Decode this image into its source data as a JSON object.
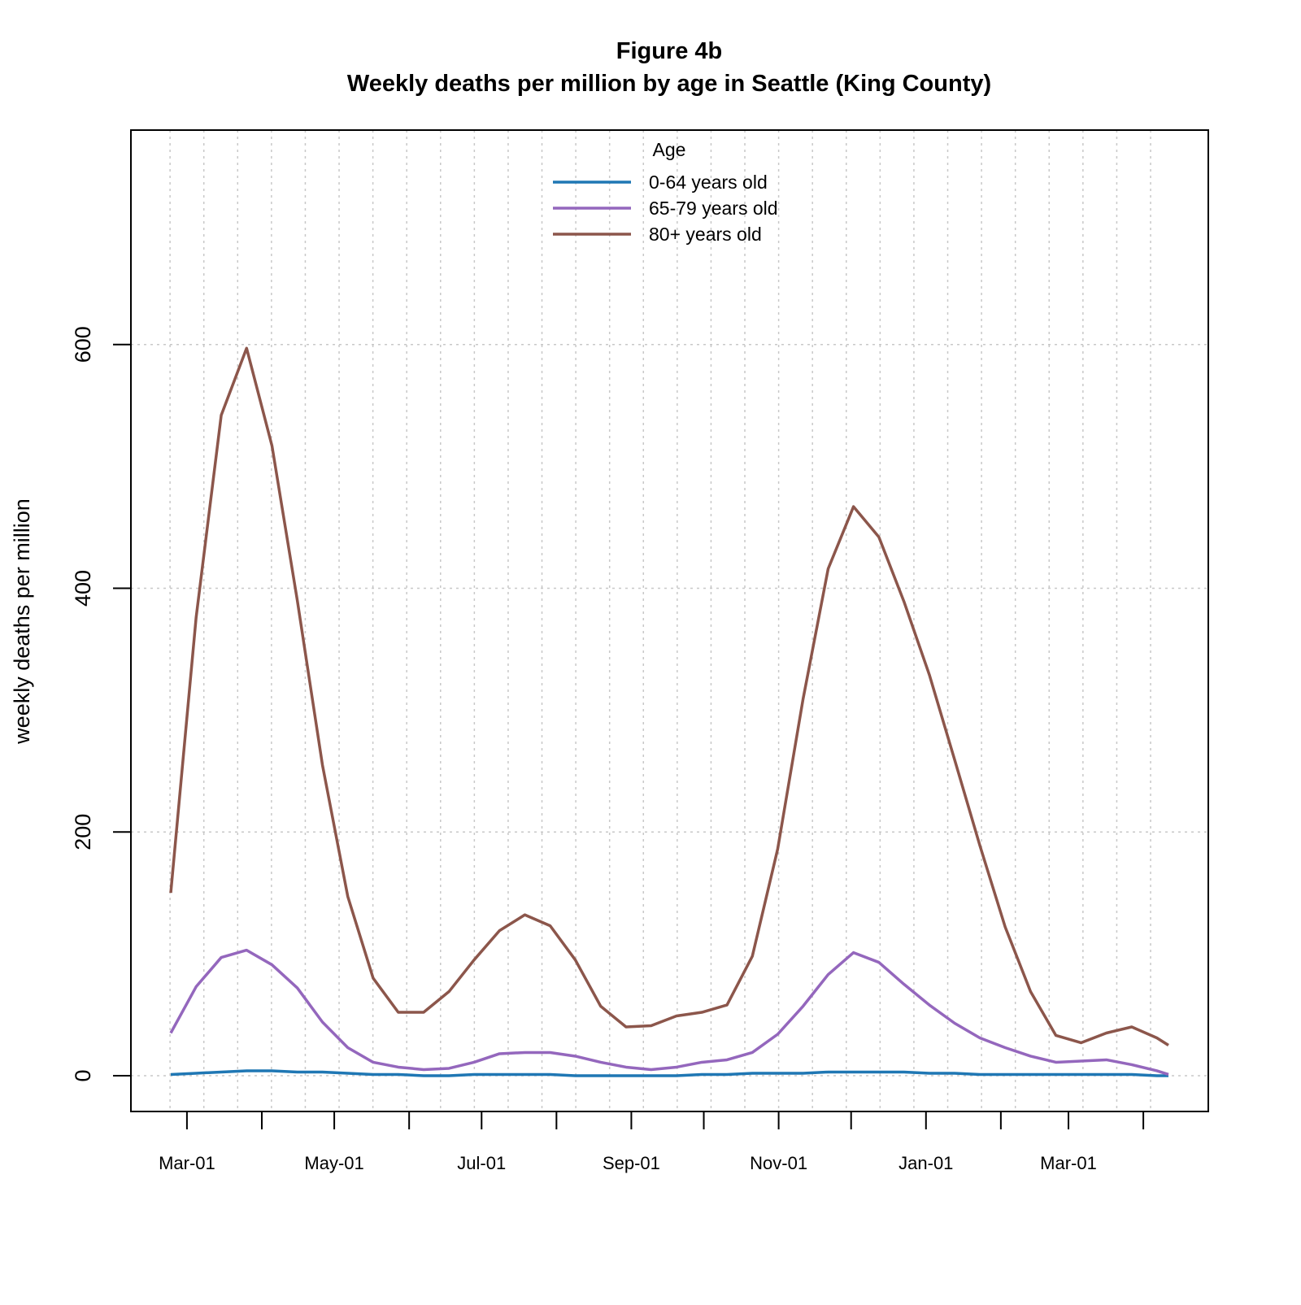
{
  "chart_data": {
    "type": "line",
    "title": "Figure 4b",
    "subtitle": "Weekly deaths per million by age in Seattle (King County)",
    "ylabel": "weekly deaths per million",
    "legend_title": "Age",
    "legend": "top",
    "grid": true,
    "x": [
      -6.7,
      3.8,
      14.2,
      24.7,
      35.2,
      45.7,
      56.1,
      66.6,
      77.1,
      87.5,
      98.0,
      108.5,
      118.9,
      129.4,
      139.9,
      150.4,
      160.8,
      171.3,
      181.8,
      192.2,
      202.7,
      213.2,
      223.6,
      234.1,
      244.6,
      255.1,
      265.5,
      276.0,
      286.5,
      296.9,
      307.4,
      317.9,
      328.3,
      338.8,
      349.3,
      359.8,
      370.2,
      380.7,
      391.2,
      401.6,
      406.4
    ],
    "series": [
      {
        "name": "0-64 years old",
        "color": "#1f77b4",
        "values": [
          1,
          2,
          3,
          4,
          4,
          3,
          3,
          2,
          1,
          1,
          0,
          0,
          1,
          1,
          1,
          1,
          0,
          0,
          0,
          0,
          0,
          1,
          1,
          2,
          2,
          2,
          3,
          3,
          3,
          3,
          2,
          2,
          1,
          1,
          1,
          1,
          1,
          1,
          1,
          0,
          0
        ]
      },
      {
        "name": "65-79 years old",
        "color": "#9467bd",
        "values": [
          35,
          73,
          97,
          103,
          91,
          72,
          44,
          23,
          11,
          7,
          5,
          6,
          11,
          18,
          19,
          19,
          16,
          11,
          7,
          5,
          7,
          11,
          13,
          19,
          34,
          57,
          83,
          101,
          93,
          75,
          58,
          43,
          31,
          23,
          16,
          11,
          12,
          13,
          9,
          4,
          1
        ]
      },
      {
        "name": "80+ years old",
        "color": "#8c564b",
        "values": [
          150,
          376,
          542,
          597,
          517,
          390,
          255,
          147,
          80,
          52,
          52,
          69,
          95,
          119,
          132,
          123,
          95,
          57,
          40,
          41,
          49,
          52,
          58,
          98,
          186,
          309,
          416,
          467,
          442,
          389,
          329,
          259,
          189,
          122,
          69,
          33,
          27,
          35,
          40,
          31,
          25
        ]
      }
    ],
    "xlim": [
      -23.2,
      422.9
    ],
    "xticks": [
      {
        "value": 0,
        "label": "Mar-01"
      },
      {
        "value": 31,
        "label": null
      },
      {
        "value": 61,
        "label": "May-01"
      },
      {
        "value": 92,
        "label": null
      },
      {
        "value": 122,
        "label": "Jul-01"
      },
      {
        "value": 153,
        "label": null
      },
      {
        "value": 184,
        "label": "Sep-01"
      },
      {
        "value": 214,
        "label": null
      },
      {
        "value": 245,
        "label": "Nov-01"
      },
      {
        "value": 275,
        "label": null
      },
      {
        "value": 306,
        "label": "Jan-01"
      },
      {
        "value": 337,
        "label": null
      },
      {
        "value": 365,
        "label": "Mar-01"
      },
      {
        "value": 396,
        "label": null
      }
    ],
    "xgrid": [
      -7,
      7,
      21,
      35,
      49,
      63,
      77,
      91,
      105,
      119,
      133,
      147,
      161,
      175,
      189,
      203,
      217,
      231,
      245,
      259,
      273,
      287,
      301,
      315,
      329,
      343,
      357,
      371,
      385,
      399
    ],
    "ylim": [
      -29.4,
      776
    ],
    "yticks": [
      0,
      200,
      400,
      600
    ]
  }
}
